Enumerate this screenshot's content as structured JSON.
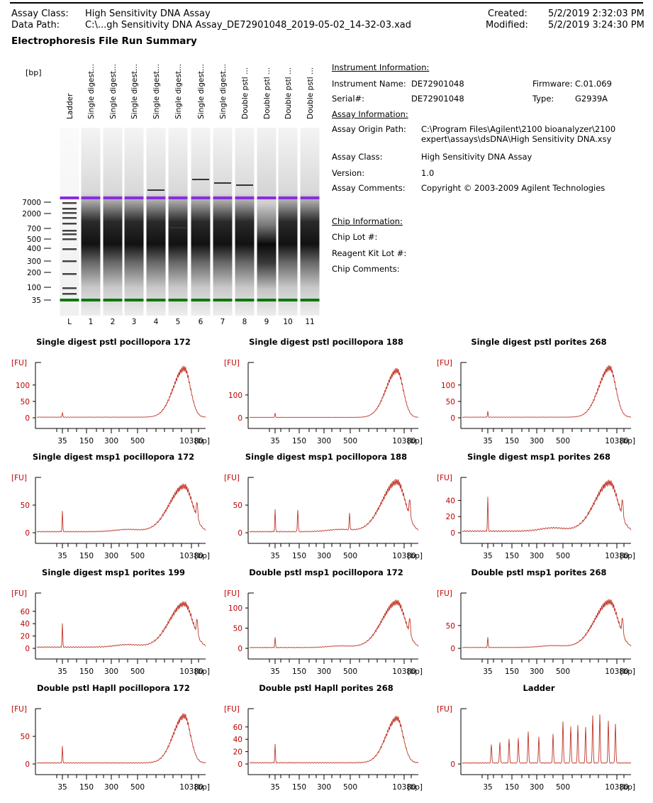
{
  "header": {
    "assay_class_label": "Assay Class:",
    "assay_class_value": "High Sensitivity DNA Assay",
    "data_path_label": "Data Path:",
    "data_path_value": "C:\\...gh Sensitivity DNA Assay_DE72901048_2019-05-02_14-32-03.xad",
    "created_label": "Created:",
    "created_value": "5/2/2019 2:32:03 PM",
    "modified_label": "Modified:",
    "modified_value": "5/2/2019 3:24:30 PM"
  },
  "page_title": "Electrophoresis File Run Summary",
  "gel": {
    "unit": "[bp]",
    "lane_names": [
      "Ladder",
      "Single digest...",
      "Single digest...",
      "Single digest...",
      "Single digest...",
      "Single digest...",
      "Single digest...",
      "Single digest...",
      "Double pstl ...",
      "Double pstl ...",
      "Double pstl ...",
      "Double pstl ..."
    ],
    "lane_numbers": [
      "L",
      "1",
      "2",
      "3",
      "4",
      "5",
      "6",
      "7",
      "8",
      "9",
      "10",
      "11"
    ],
    "size_labels": [
      "7000",
      "2000",
      "700",
      "500",
      "400",
      "300",
      "200",
      "100",
      "35"
    ]
  },
  "instrument": {
    "heading": "Instrument Information:",
    "name_label": "Instrument Name:",
    "name_value": "DE72901048",
    "serial_label": "Serial#:",
    "serial_value": "DE72901048",
    "firmware_label": "Firmware:",
    "firmware_value": "C.01.069",
    "type_label": "Type:",
    "type_value": "G2939A"
  },
  "assay": {
    "heading": "Assay Information:",
    "origin_label": "Assay Origin Path:",
    "origin_line1": "C:\\Program Files\\Agilent\\2100 bioanalyzer\\2100",
    "origin_line2": "expert\\assays\\dsDNA\\High Sensitivity DNA.xsy",
    "class_label": "Assay Class:",
    "class_value": "High Sensitivity DNA Assay",
    "version_label": "Version:",
    "version_value": "1.0",
    "comments_label": "Assay Comments:",
    "comments_value": "Copyright © 2003-2009 Agilent Technologies"
  },
  "chip": {
    "heading": "Chip Information:",
    "lot_label": "Chip Lot #:",
    "reagent_label": "Reagent Kit Lot #:",
    "comments_label": "Chip Comments:"
  },
  "plot_axis": {
    "y_unit": "[FU]",
    "x_unit": "[bp]",
    "x_ticks": [
      "35",
      "150",
      "300",
      "500",
      "10380"
    ]
  },
  "chart_data": [
    {
      "type": "line",
      "title": "Single digest pstl pocillopora 172",
      "y_ticks": [
        "0",
        "50",
        "100"
      ],
      "ylim": [
        0,
        160
      ],
      "peak_y": 148,
      "spike_y": 14,
      "shape": "single"
    },
    {
      "type": "line",
      "title": "Single digest pstl pocillopora 188",
      "y_ticks": [
        "0",
        "100"
      ],
      "ylim": [
        0,
        230
      ],
      "peak_y": 205,
      "spike_y": 18,
      "shape": "single"
    },
    {
      "type": "line",
      "title": "Single digest pstl porites 268",
      "y_ticks": [
        "0",
        "50",
        "100"
      ],
      "ylim": [
        0,
        160
      ],
      "peak_y": 150,
      "spike_y": 18,
      "shape": "single"
    },
    {
      "type": "line",
      "title": "Single digest msp1 pocillopora 172",
      "y_ticks": [
        "0",
        "50"
      ],
      "ylim": [
        0,
        95
      ],
      "peak_y": 82,
      "spike_y": 37,
      "shape": "msp"
    },
    {
      "type": "line",
      "title": "Single digest msp1 pocillopora 188",
      "y_ticks": [
        "0",
        "50"
      ],
      "ylim": [
        0,
        95
      ],
      "peak_y": 90,
      "spike_y": 40,
      "shape": "msp2"
    },
    {
      "type": "line",
      "title": "Single digest msp1 porites 268",
      "y_ticks": [
        "0",
        "20",
        "40"
      ],
      "ylim": [
        0,
        65
      ],
      "peak_y": 60,
      "spike_y": 42,
      "shape": "msp"
    },
    {
      "type": "line",
      "title": "Single digest msp1 porites 199",
      "y_ticks": [
        "0",
        "20",
        "40",
        "60"
      ],
      "ylim": [
        0,
        85
      ],
      "peak_y": 70,
      "spike_y": 38,
      "shape": "msp"
    },
    {
      "type": "line",
      "title": "Double pstl msp1 pocillopora 172",
      "y_ticks": [
        "0",
        "50",
        "100"
      ],
      "ylim": [
        0,
        130
      ],
      "peak_y": 112,
      "spike_y": 25,
      "shape": "msp"
    },
    {
      "type": "line",
      "title": "Double pstl msp1 porites 268",
      "y_ticks": [
        "0",
        "50"
      ],
      "ylim": [
        0,
        115
      ],
      "peak_y": 100,
      "spike_y": 22,
      "shape": "msp"
    },
    {
      "type": "line",
      "title": "Double pstl Hapll pocillopora 172",
      "y_ticks": [
        "0",
        "50"
      ],
      "ylim": [
        0,
        95
      ],
      "peak_y": 85,
      "spike_y": 30,
      "shape": "single"
    },
    {
      "type": "line",
      "title": "Double pstl Hapll porites 268",
      "y_ticks": [
        "0",
        "20",
        "40",
        "60"
      ],
      "ylim": [
        0,
        85
      ],
      "peak_y": 72,
      "spike_y": 30,
      "shape": "single"
    },
    {
      "type": "line",
      "title": "Ladder",
      "y_ticks": [
        "0"
      ],
      "ylim": [
        0,
        100
      ],
      "peak_y": 95,
      "spike_y": 0,
      "shape": "ladder"
    }
  ]
}
